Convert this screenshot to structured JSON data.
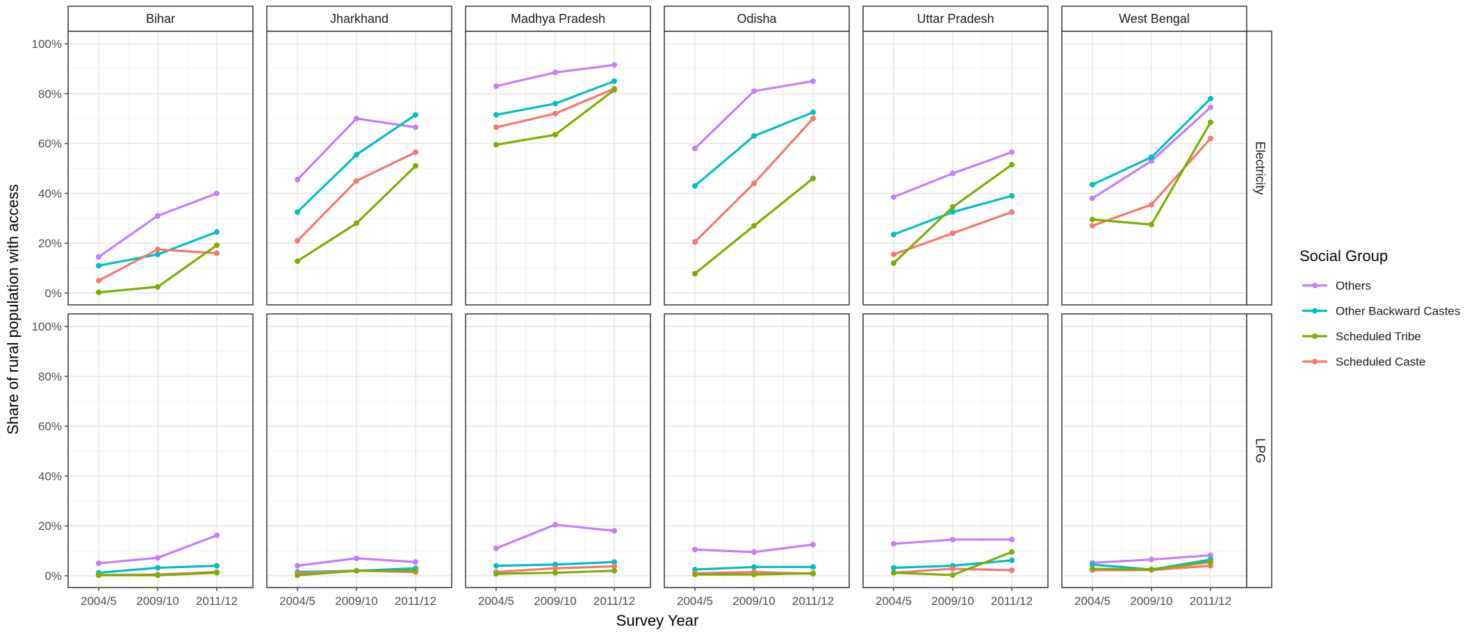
{
  "chart_data": {
    "type": "line",
    "facet_rows": [
      "Electricity",
      "LPG"
    ],
    "facet_cols": [
      "Bihar",
      "Jharkhand",
      "Madhya Pradesh",
      "Odisha",
      "Uttar Pradesh",
      "West Bengal"
    ],
    "x": [
      "2004/5",
      "2009/10",
      "2011/12"
    ],
    "xlabel": "Survey Year",
    "ylabel": "Share of rural population with access",
    "ylim": [
      0,
      100
    ],
    "yticks": [
      "0%",
      "20%",
      "40%",
      "60%",
      "80%",
      "100%"
    ],
    "grid": true,
    "legend": {
      "title": "Social Group",
      "placement": "right",
      "entries": [
        {
          "name": "Others",
          "color": "#c77cff"
        },
        {
          "name": "Other Backward Castes",
          "color": "#00bfc4"
        },
        {
          "name": "Scheduled Tribe",
          "color": "#7cae00"
        },
        {
          "name": "Scheduled Caste",
          "color": "#f8766d"
        }
      ]
    },
    "series_order": [
      "Others",
      "Other Backward Castes",
      "Scheduled Caste",
      "Scheduled Tribe"
    ],
    "panels": {
      "Electricity": {
        "Bihar": {
          "Others": [
            14.5,
            31,
            40
          ],
          "Other Backward Castes": [
            11,
            15.5,
            24.5
          ],
          "Scheduled Tribe": [
            0.3,
            2.5,
            19.2
          ],
          "Scheduled Caste": [
            5,
            17.5,
            16
          ]
        },
        "Jharkhand": {
          "Others": [
            45.5,
            70,
            66.5
          ],
          "Other Backward Castes": [
            32.5,
            55.5,
            71.5
          ],
          "Scheduled Tribe": [
            12.8,
            28,
            51
          ],
          "Scheduled Caste": [
            21,
            45,
            56.5
          ]
        },
        "Madhya Pradesh": {
          "Others": [
            83,
            88.5,
            91.5
          ],
          "Other Backward Castes": [
            71.5,
            76,
            85
          ],
          "Scheduled Tribe": [
            59.5,
            63.5,
            81.5
          ],
          "Scheduled Caste": [
            66.5,
            72,
            82
          ]
        },
        "Odisha": {
          "Others": [
            58,
            81,
            85
          ],
          "Other Backward Castes": [
            43,
            63,
            72.5
          ],
          "Scheduled Tribe": [
            7.8,
            27,
            46
          ],
          "Scheduled Caste": [
            20.5,
            44,
            70
          ]
        },
        "Uttar Pradesh": {
          "Others": [
            38.5,
            48,
            56.5
          ],
          "Other Backward Castes": [
            23.5,
            32.5,
            39
          ],
          "Scheduled Tribe": [
            12,
            34.5,
            51.5
          ],
          "Scheduled Caste": [
            15.5,
            24,
            32.5
          ]
        },
        "West Bengal": {
          "Others": [
            38,
            53,
            74.5
          ],
          "Other Backward Castes": [
            43.5,
            54.5,
            78
          ],
          "Scheduled Tribe": [
            29.5,
            27.5,
            68.5
          ],
          "Scheduled Caste": [
            27,
            35.5,
            62
          ]
        }
      },
      "LPG": {
        "Bihar": {
          "Others": [
            5,
            7.2,
            16.2
          ],
          "Other Backward Castes": [
            1.2,
            3.2,
            4
          ],
          "Scheduled Tribe": [
            0.2,
            0.2,
            1.2
          ],
          "Scheduled Caste": [
            0.3,
            0.5,
            1.5
          ]
        },
        "Jharkhand": {
          "Others": [
            4,
            7,
            5.5
          ],
          "Other Backward Castes": [
            1.5,
            2,
            3
          ],
          "Scheduled Tribe": [
            0.2,
            2,
            2
          ],
          "Scheduled Caste": [
            1,
            2,
            1.5
          ]
        },
        "Madhya Pradesh": {
          "Others": [
            11,
            20.5,
            18
          ],
          "Other Backward Castes": [
            4,
            4.5,
            5.5
          ],
          "Scheduled Tribe": [
            0.8,
            1.2,
            2
          ],
          "Scheduled Caste": [
            1.5,
            3,
            3.8
          ]
        },
        "Odisha": {
          "Others": [
            10.5,
            9.5,
            12.5
          ],
          "Other Backward Castes": [
            2.5,
            3.5,
            3.5
          ],
          "Scheduled Tribe": [
            0.5,
            0.5,
            1
          ],
          "Scheduled Caste": [
            1,
            1.5,
            0.8
          ]
        },
        "Uttar Pradesh": {
          "Others": [
            12.8,
            14.5,
            14.5
          ],
          "Other Backward Castes": [
            3.2,
            4,
            6.2
          ],
          "Scheduled Tribe": [
            1.2,
            0.3,
            9.5
          ],
          "Scheduled Caste": [
            1.2,
            2.8,
            2.2
          ]
        },
        "West Bengal": {
          "Others": [
            5.2,
            6.5,
            8.2
          ],
          "Other Backward Castes": [
            4.5,
            2.5,
            6.5
          ],
          "Scheduled Tribe": [
            2.8,
            2.5,
            5.5
          ],
          "Scheduled Caste": [
            2.2,
            2.3,
            4
          ]
        }
      }
    }
  }
}
